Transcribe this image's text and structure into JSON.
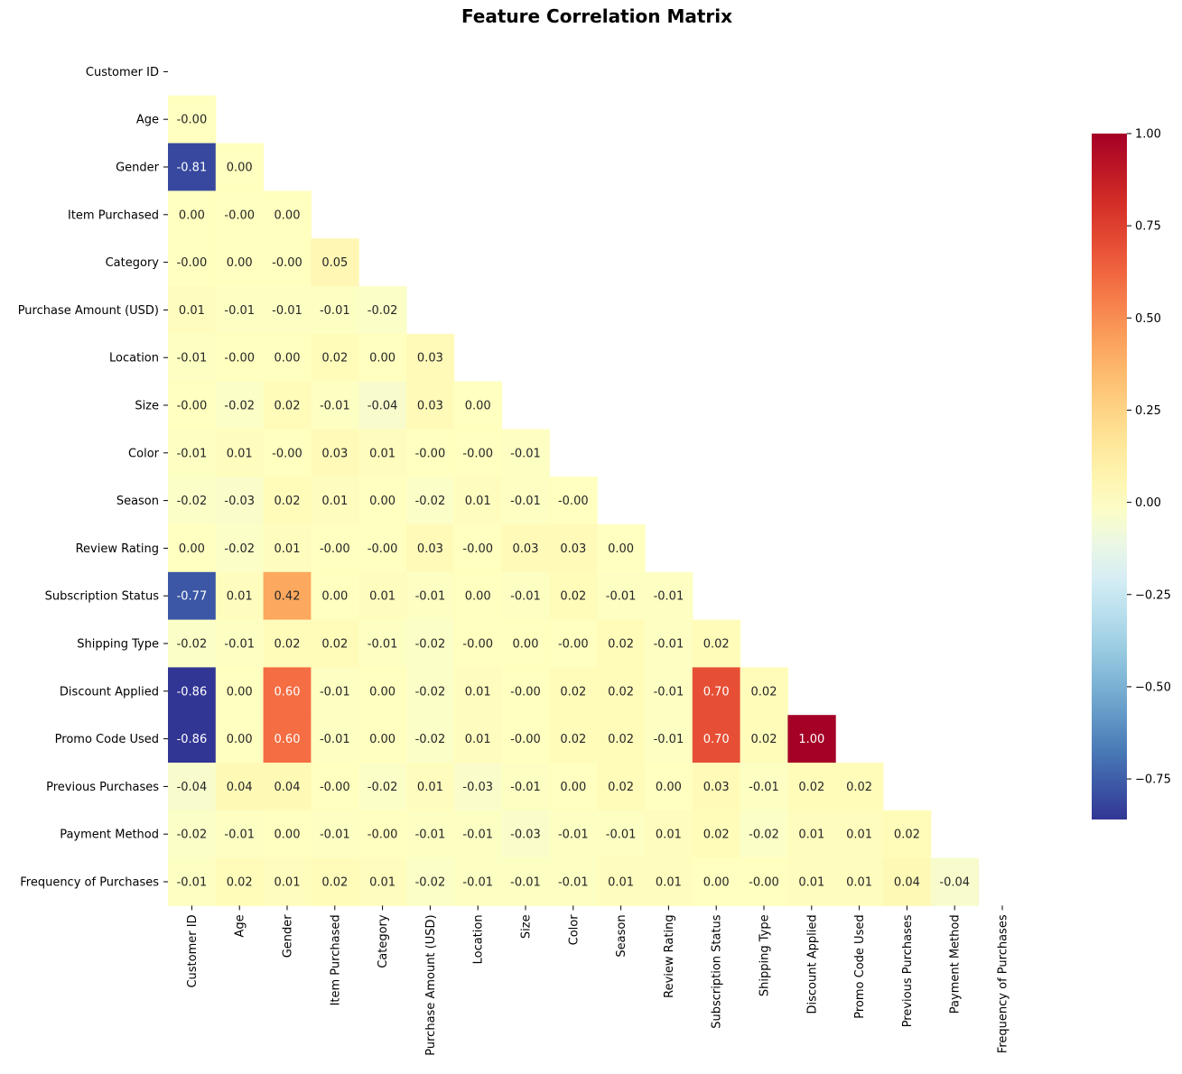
{
  "chart_data": {
    "type": "heatmap",
    "title": "Feature Correlation Matrix",
    "mask": "upper-triangle-and-diagonal",
    "colormap": "RdYlBu_r",
    "color_range": [
      -0.86,
      1.0
    ],
    "labels": [
      "Customer ID",
      "Age",
      "Gender",
      "Item Purchased",
      "Category",
      "Purchase Amount (USD)",
      "Location",
      "Size",
      "Color",
      "Season",
      "Review Rating",
      "Subscription Status",
      "Shipping Type",
      "Discount Applied",
      "Promo Code Used",
      "Previous Purchases",
      "Payment Method",
      "Frequency of Purchases"
    ],
    "lower_triangle": [
      [],
      [
        -0.0
      ],
      [
        -0.81,
        0.0
      ],
      [
        0.0,
        -0.0,
        0.0
      ],
      [
        -0.0,
        0.0,
        -0.0,
        0.05
      ],
      [
        0.01,
        -0.01,
        -0.01,
        -0.01,
        -0.02
      ],
      [
        -0.01,
        -0.0,
        0.0,
        0.02,
        0.0,
        0.03
      ],
      [
        -0.0,
        -0.02,
        0.02,
        -0.01,
        -0.04,
        0.03,
        0.0
      ],
      [
        -0.01,
        0.01,
        -0.0,
        0.03,
        0.01,
        -0.0,
        -0.0,
        -0.01
      ],
      [
        -0.02,
        -0.03,
        0.02,
        0.01,
        0.0,
        -0.02,
        0.01,
        -0.01,
        -0.0
      ],
      [
        0.0,
        -0.02,
        0.01,
        -0.0,
        -0.0,
        0.03,
        -0.0,
        0.03,
        0.03,
        0.0
      ],
      [
        -0.77,
        0.01,
        0.42,
        0.0,
        0.01,
        -0.01,
        0.0,
        -0.01,
        0.02,
        -0.01,
        -0.01
      ],
      [
        -0.02,
        -0.01,
        0.02,
        0.02,
        -0.01,
        -0.02,
        -0.0,
        0.0,
        -0.0,
        0.02,
        -0.01,
        0.02
      ],
      [
        -0.86,
        0.0,
        0.6,
        -0.01,
        0.0,
        -0.02,
        0.01,
        -0.0,
        0.02,
        0.02,
        -0.01,
        0.7,
        0.02
      ],
      [
        -0.86,
        0.0,
        0.6,
        -0.01,
        0.0,
        -0.02,
        0.01,
        -0.0,
        0.02,
        0.02,
        -0.01,
        0.7,
        0.02,
        1.0
      ],
      [
        -0.04,
        0.04,
        0.04,
        -0.0,
        -0.02,
        0.01,
        -0.03,
        -0.01,
        0.0,
        0.02,
        0.0,
        0.03,
        -0.01,
        0.02,
        0.02
      ],
      [
        -0.02,
        -0.01,
        0.0,
        -0.01,
        -0.0,
        -0.01,
        -0.01,
        -0.03,
        -0.01,
        -0.01,
        0.01,
        0.02,
        -0.02,
        0.01,
        0.01,
        0.02
      ],
      [
        -0.01,
        0.02,
        0.01,
        0.02,
        0.01,
        -0.02,
        -0.01,
        -0.01,
        -0.01,
        0.01,
        0.01,
        0.0,
        -0.0,
        0.01,
        0.01,
        0.04,
        -0.04
      ]
    ],
    "colorbar": {
      "ticks": [
        1.0,
        0.75,
        0.5,
        0.25,
        0.0,
        -0.25,
        -0.5,
        -0.75
      ],
      "tick_labels": [
        "1.00",
        "0.75",
        "0.50",
        "0.25",
        "0.00",
        "−0.25",
        "−0.50",
        "−0.75"
      ]
    }
  }
}
